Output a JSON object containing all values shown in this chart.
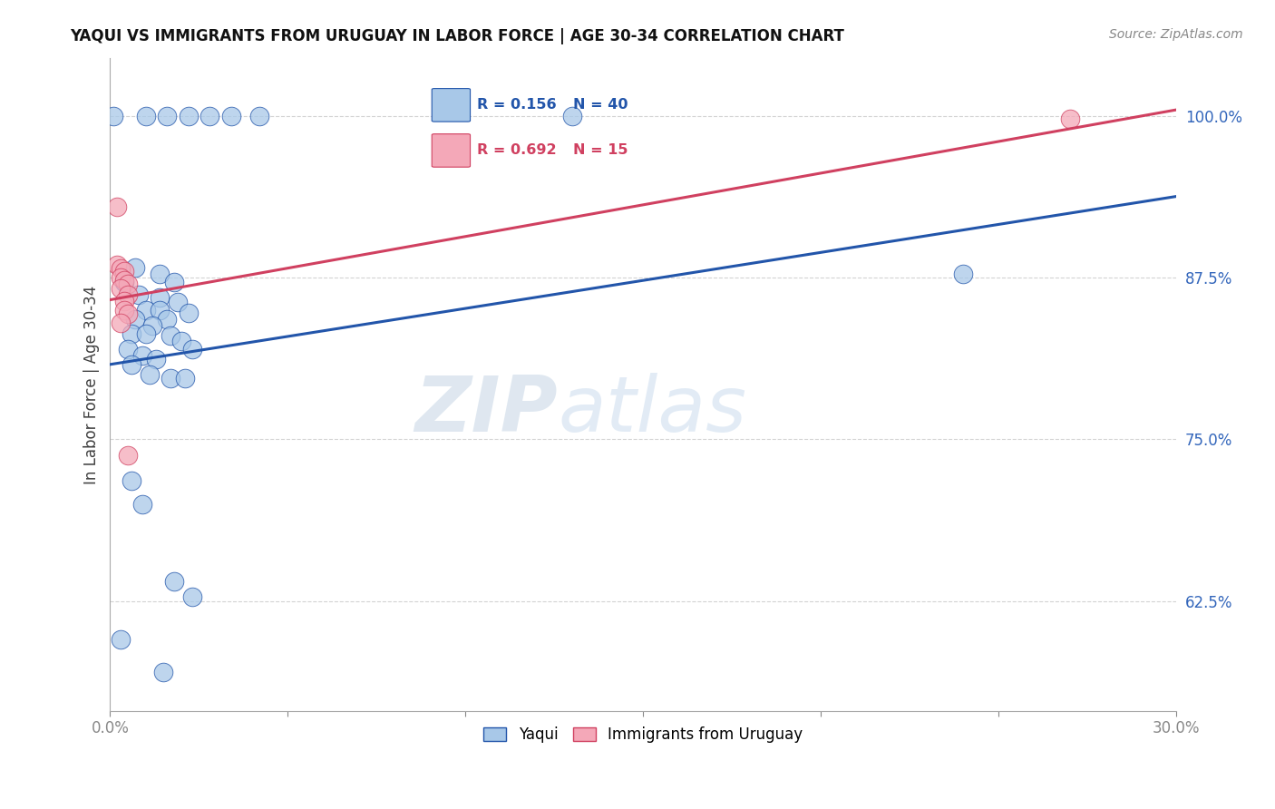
{
  "title": "YAQUI VS IMMIGRANTS FROM URUGUAY IN LABOR FORCE | AGE 30-34 CORRELATION CHART",
  "source": "Source: ZipAtlas.com",
  "ylabel": "In Labor Force | Age 30-34",
  "xlim": [
    0.0,
    0.3
  ],
  "ylim": [
    0.54,
    1.045
  ],
  "xticks": [
    0.0,
    0.05,
    0.1,
    0.15,
    0.2,
    0.25,
    0.3
  ],
  "yticks": [
    0.625,
    0.75,
    0.875,
    1.0
  ],
  "yticklabels": [
    "62.5%",
    "75.0%",
    "87.5%",
    "100.0%"
  ],
  "blue_color": "#a8c8e8",
  "pink_color": "#f4a8b8",
  "blue_line_color": "#2255aa",
  "pink_line_color": "#d04060",
  "legend_blue_R": "R = 0.156",
  "legend_blue_N": "N = 40",
  "legend_pink_R": "R = 0.692",
  "legend_pink_N": "N = 15",
  "watermark_zip": "ZIP",
  "watermark_atlas": "atlas",
  "blue_dots": [
    [
      0.001,
      1.0
    ],
    [
      0.01,
      1.0
    ],
    [
      0.016,
      1.0
    ],
    [
      0.022,
      1.0
    ],
    [
      0.028,
      1.0
    ],
    [
      0.034,
      1.0
    ],
    [
      0.042,
      1.0
    ],
    [
      0.13,
      1.0
    ],
    [
      0.007,
      0.883
    ],
    [
      0.014,
      0.878
    ],
    [
      0.004,
      0.872
    ],
    [
      0.018,
      0.872
    ],
    [
      0.008,
      0.862
    ],
    [
      0.014,
      0.86
    ],
    [
      0.019,
      0.856
    ],
    [
      0.01,
      0.85
    ],
    [
      0.014,
      0.85
    ],
    [
      0.022,
      0.848
    ],
    [
      0.007,
      0.843
    ],
    [
      0.016,
      0.843
    ],
    [
      0.012,
      0.838
    ],
    [
      0.006,
      0.832
    ],
    [
      0.01,
      0.832
    ],
    [
      0.017,
      0.83
    ],
    [
      0.02,
      0.826
    ],
    [
      0.005,
      0.82
    ],
    [
      0.023,
      0.82
    ],
    [
      0.009,
      0.815
    ],
    [
      0.013,
      0.812
    ],
    [
      0.006,
      0.808
    ],
    [
      0.011,
      0.8
    ],
    [
      0.017,
      0.797
    ],
    [
      0.021,
      0.797
    ],
    [
      0.006,
      0.718
    ],
    [
      0.009,
      0.7
    ],
    [
      0.018,
      0.64
    ],
    [
      0.023,
      0.628
    ],
    [
      0.003,
      0.595
    ],
    [
      0.015,
      0.57
    ],
    [
      0.24,
      0.878
    ]
  ],
  "pink_dots": [
    [
      0.002,
      0.93
    ],
    [
      0.002,
      0.885
    ],
    [
      0.003,
      0.882
    ],
    [
      0.004,
      0.88
    ],
    [
      0.003,
      0.875
    ],
    [
      0.004,
      0.873
    ],
    [
      0.005,
      0.87
    ],
    [
      0.003,
      0.867
    ],
    [
      0.005,
      0.862
    ],
    [
      0.004,
      0.857
    ],
    [
      0.004,
      0.85
    ],
    [
      0.005,
      0.847
    ],
    [
      0.003,
      0.84
    ],
    [
      0.005,
      0.738
    ],
    [
      0.27,
      0.998
    ]
  ],
  "blue_trendline": [
    [
      0.0,
      0.808
    ],
    [
      0.3,
      0.938
    ]
  ],
  "pink_trendline": [
    [
      0.0,
      0.858
    ],
    [
      0.3,
      1.005
    ]
  ]
}
